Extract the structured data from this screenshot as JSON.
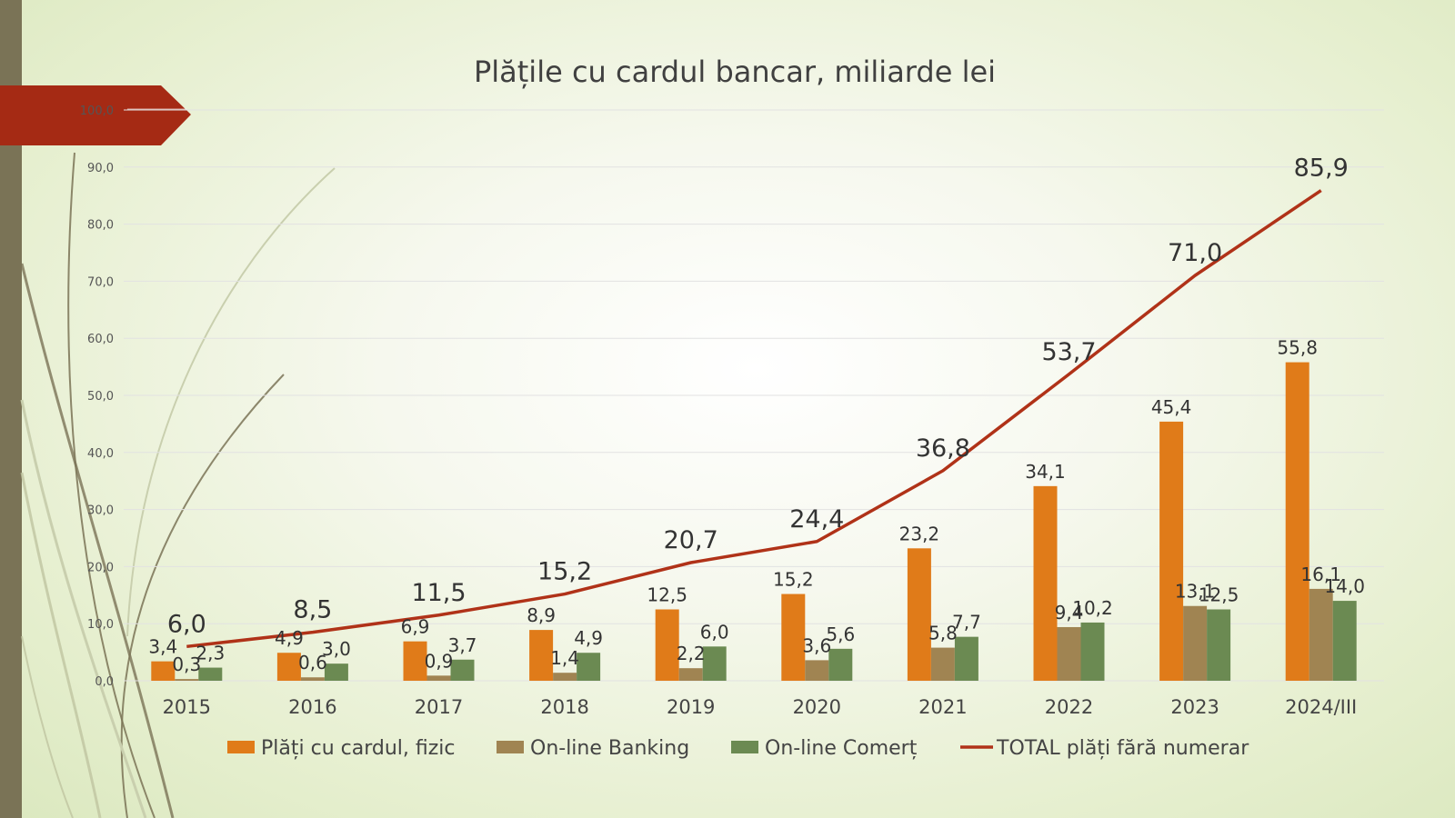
{
  "chart_data": {
    "type": "bar",
    "title": "Plățile cu cardul bancar, miliarde lei",
    "categories": [
      "2015",
      "2016",
      "2017",
      "2018",
      "2019",
      "2020",
      "2021",
      "2022",
      "2023",
      "2024/III"
    ],
    "series": [
      {
        "name": "Plăți cu cardul, fizic",
        "kind": "bar",
        "color": "#e07b19",
        "values": [
          3.4,
          4.9,
          6.9,
          8.9,
          12.5,
          15.2,
          23.2,
          34.1,
          45.4,
          55.8
        ],
        "labels": [
          "3,4",
          "4,9",
          "6,9",
          "8,9",
          "12,5",
          "15,2",
          "23,2",
          "34,1",
          "45,4",
          "55,8"
        ]
      },
      {
        "name": "On-line Banking",
        "kind": "bar",
        "color": "#a08452",
        "values": [
          0.3,
          0.6,
          0.9,
          1.4,
          2.2,
          3.6,
          5.8,
          9.4,
          13.1,
          16.1
        ],
        "labels": [
          "0,3",
          "0,6",
          "0,9",
          "1,4",
          "2,2",
          "3,6",
          "5,8",
          "9,4",
          "13,1",
          "16,1"
        ]
      },
      {
        "name": "On-line Comerț",
        "kind": "bar",
        "color": "#6b8a52",
        "values": [
          2.3,
          3.0,
          3.7,
          4.9,
          6.0,
          5.6,
          7.7,
          10.2,
          12.5,
          14.0
        ],
        "labels": [
          "2,3",
          "3,0",
          "3,7",
          "4,9",
          "6,0",
          "5,6",
          "7,7",
          "10,2",
          "12,5",
          "14,0"
        ]
      },
      {
        "name": "TOTAL plăți fără numerar",
        "kind": "line",
        "color": "#b03218",
        "values": [
          6.0,
          8.5,
          11.5,
          15.2,
          20.7,
          24.4,
          36.8,
          53.7,
          71.0,
          85.9
        ],
        "labels": [
          "6,0",
          "8,5",
          "11,5",
          "15,2",
          "20,7",
          "24,4",
          "36,8",
          "53,7",
          "71,0",
          "85,9"
        ]
      }
    ],
    "ylim": [
      0,
      100
    ],
    "yticks": [
      "0,0",
      "10,0",
      "20,0",
      "30,0",
      "40,0",
      "50,0",
      "60,0",
      "70,0",
      "80,0",
      "90,0",
      "100,0"
    ],
    "xlabel": "",
    "ylabel": "",
    "grid": true,
    "legend_position": "bottom"
  },
  "colors": {
    "accent_red": "#a52a14",
    "sidebar": "#7a7356",
    "grid": "#e2e2e2"
  }
}
